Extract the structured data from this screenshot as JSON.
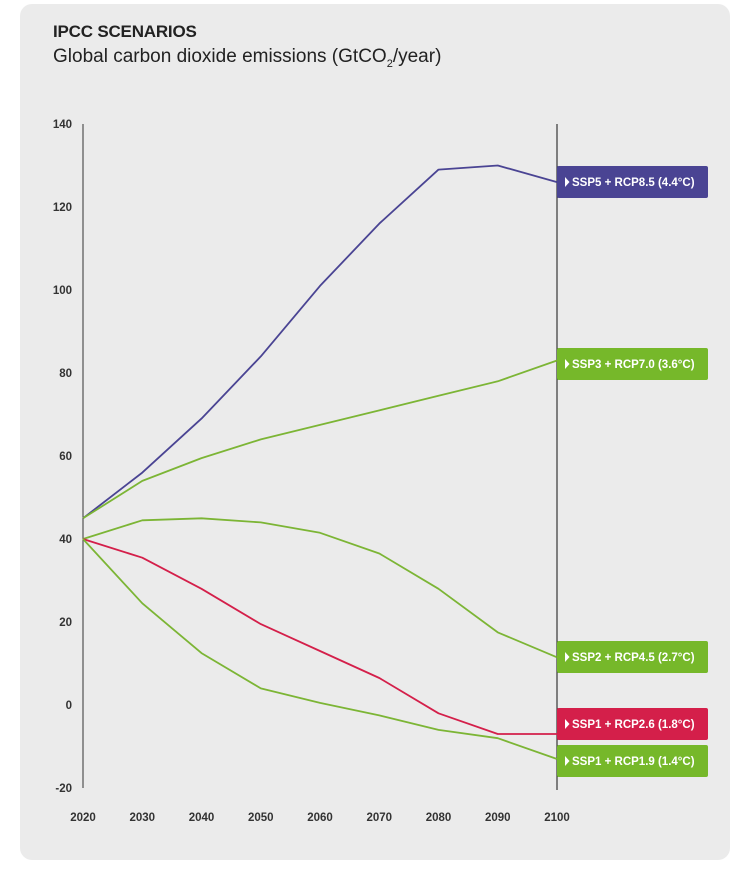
{
  "header": {
    "title": "IPCC SCENARIOS",
    "subtitle_main": "Global carbon dioxide emissions (GtCO",
    "subtitle_sub": "2",
    "subtitle_end": "/year)"
  },
  "chart_data": {
    "type": "line",
    "title": "IPCC SCENARIOS",
    "subtitle": "Global carbon dioxide emissions (GtCO2/year)",
    "xlabel": "",
    "ylabel": "",
    "x": [
      2020,
      2030,
      2040,
      2050,
      2060,
      2070,
      2080,
      2090,
      2100
    ],
    "x_ticks": [
      "2020",
      "2030",
      "2040",
      "2050",
      "2060",
      "2070",
      "2080",
      "2090",
      "2100"
    ],
    "y_ticks": [
      "140",
      "120",
      "100",
      "80",
      "60",
      "40",
      "20",
      "0",
      "-20"
    ],
    "ylim": [
      -20,
      140
    ],
    "grid": false,
    "legend": "right-edge labels",
    "series": [
      {
        "name": "SSP5 + RCP8.5 (4.4°C)",
        "color": "#4a4493",
        "label_color": "#4a4493",
        "values": [
          45,
          56,
          69,
          84,
          101,
          116,
          129,
          130,
          126
        ]
      },
      {
        "name": "SSP3 + RCP7.0 (3.6°C)",
        "color": "#7cb535",
        "label_color": "#76b82a",
        "values": [
          45,
          54,
          59.5,
          64,
          67.5,
          71,
          74.5,
          78,
          83
        ]
      },
      {
        "name": "SSP2 + RCP4.5 (2.7°C)",
        "color": "#7cb535",
        "label_color": "#76b82a",
        "values": [
          40,
          44.5,
          45,
          44,
          41.5,
          36.5,
          28,
          17.5,
          11.5
        ]
      },
      {
        "name": "SSP1 + RCP2.6 (1.8°C)",
        "color": "#d41f4a",
        "label_color": "#d41f4a",
        "values": [
          40,
          35.5,
          28,
          19.5,
          13,
          6.5,
          -2,
          -7,
          -7
        ]
      },
      {
        "name": "SSP1 + RCP1.9 (1.4°C)",
        "color": "#7cb535",
        "label_color": "#76b82a",
        "values": [
          40,
          24.5,
          12.5,
          4,
          0.5,
          -2.5,
          -6,
          -8,
          -13
        ]
      }
    ]
  }
}
